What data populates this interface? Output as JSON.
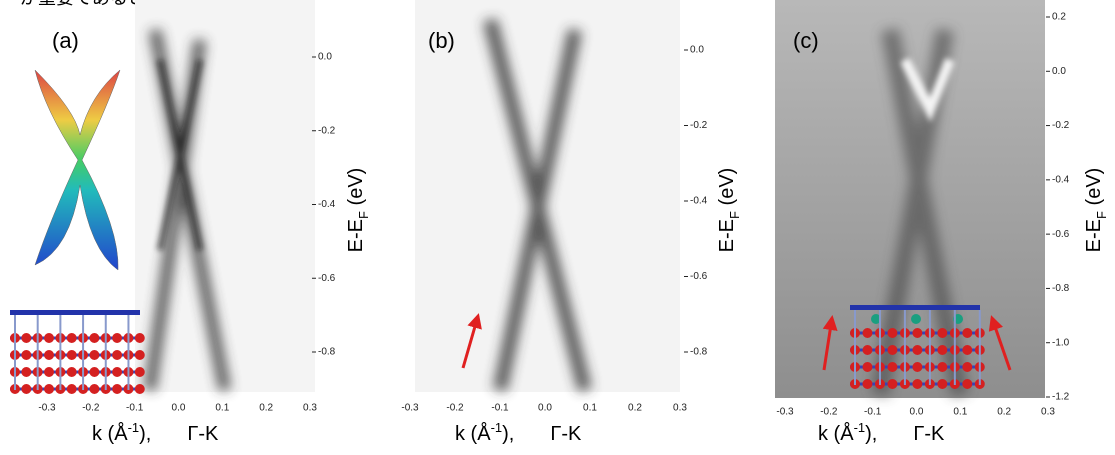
{
  "caption_fragment": "が重要であることを示している。",
  "panels": [
    {
      "label": "(a)",
      "xticks": [
        "-0.3",
        "-0.2",
        "-0.1",
        "0.0",
        "0.1",
        "0.2",
        "0.3"
      ],
      "yticks": [
        "0.0",
        "-0.2",
        "-0.4",
        "-0.6",
        "-0.8"
      ],
      "xlabel": {
        "pre": "k (Å",
        "sup": "-1",
        "post": "),",
        "dir": "Γ-K"
      },
      "ylabel": {
        "pre": "E-E",
        "sub": "F",
        "post": " (eV)"
      }
    },
    {
      "label": "(b)",
      "xticks": [
        "-0.3",
        "-0.2",
        "-0.1",
        "0.0",
        "0.1",
        "0.2",
        "0.3"
      ],
      "yticks": [
        "0.0",
        "-0.2",
        "-0.4",
        "-0.6",
        "-0.8"
      ],
      "xlabel": {
        "pre": "k (Å",
        "sup": "-1",
        "post": "),",
        "dir": "Γ-K"
      },
      "ylabel": {
        "pre": "E-E",
        "sub": "F",
        "post": " (eV)"
      }
    },
    {
      "label": "(c)",
      "xticks": [
        "-0.3",
        "-0.2",
        "-0.1",
        "0.0",
        "0.1",
        "0.2",
        "0.3"
      ],
      "yticks": [
        "0.2",
        "0.0",
        "-0.2",
        "-0.4",
        "-0.6",
        "-0.8",
        "-1.0",
        "-1.2"
      ],
      "xlabel": {
        "pre": "k (Å",
        "sup": "-1",
        "post": "),",
        "dir": "Γ-K"
      },
      "ylabel": {
        "pre": "E-E",
        "sub": "F",
        "post": " (eV)"
      }
    }
  ]
}
